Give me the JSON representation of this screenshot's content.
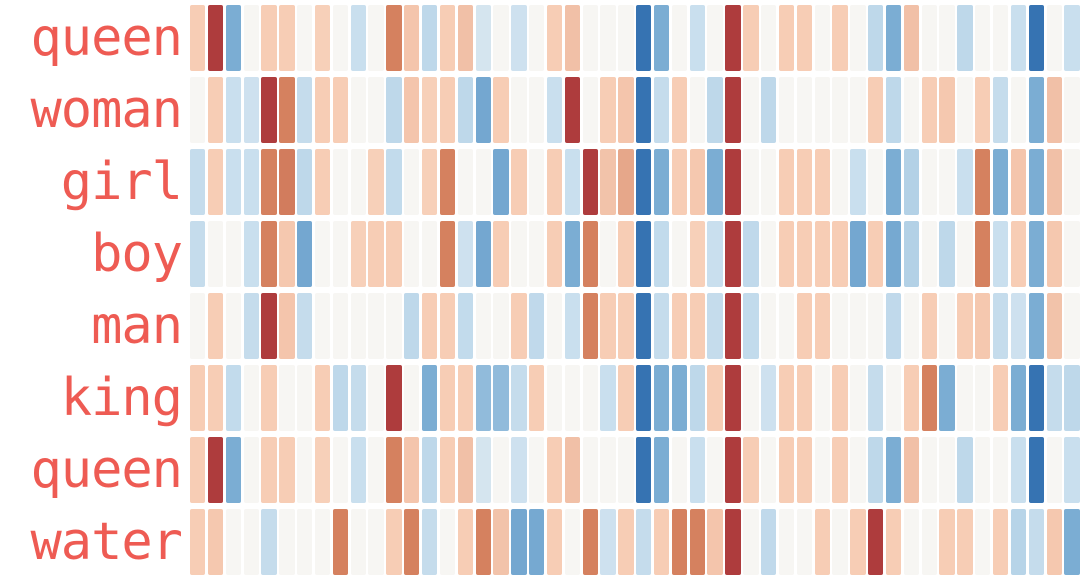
{
  "figure": {
    "background": "#ffffff",
    "label_color": "#ee5b53"
  },
  "chart_data": {
    "type": "heatmap",
    "title": "",
    "xlabel": "",
    "ylabel": "",
    "legend": "none",
    "grid": false,
    "rows": [
      "queen",
      "woman",
      "girl",
      "boy",
      "man",
      "king",
      "queen",
      "water"
    ],
    "columns": 50,
    "value_range": [
      -1,
      1
    ],
    "colormap": {
      "name": "red-white-blue-diverging",
      "stops": [
        [
          -0.85,
          "#3673b2"
        ],
        [
          -0.55,
          "#7badd3"
        ],
        [
          -0.2,
          "#c9dfee"
        ],
        [
          0.0,
          "#f7f6f3"
        ],
        [
          0.3,
          "#f7cdb5"
        ],
        [
          0.6,
          "#d5815f"
        ],
        [
          0.9,
          "#ae3c3d"
        ]
      ]
    },
    "values": [
      [
        0.3,
        0.9,
        -0.55,
        0,
        0.3,
        0.3,
        0,
        0.28,
        0,
        -0.2,
        0,
        0.6,
        0.33,
        -0.25,
        0.3,
        0.35,
        -0.15,
        0,
        -0.18,
        0,
        0.3,
        0.35,
        0,
        0,
        0,
        -0.85,
        -0.55,
        0,
        -0.2,
        0,
        0.9,
        0.3,
        0,
        0.3,
        0.3,
        0,
        0.3,
        0,
        -0.25,
        -0.55,
        0.35,
        0,
        0,
        -0.25,
        0,
        0,
        -0.2,
        -0.85,
        0,
        -0.2
      ],
      [
        0,
        0.3,
        -0.2,
        -0.18,
        0.9,
        0.6,
        -0.22,
        0.3,
        0.3,
        0,
        0,
        -0.25,
        0.33,
        0.28,
        0.3,
        -0.25,
        -0.58,
        0.3,
        0,
        0,
        -0.2,
        0.9,
        0,
        0.3,
        0.33,
        -0.85,
        -0.22,
        0.3,
        0,
        -0.25,
        0.9,
        0,
        -0.25,
        0,
        0,
        0,
        0,
        0,
        0.3,
        -0.25,
        0,
        0.3,
        0.32,
        0,
        0.3,
        -0.22,
        0,
        -0.55,
        0.35,
        0
      ],
      [
        -0.22,
        0.3,
        -0.2,
        -0.2,
        0.6,
        0.62,
        -0.25,
        0.3,
        0,
        0,
        0.28,
        -0.23,
        0,
        0.28,
        0.6,
        0,
        0,
        -0.58,
        0.3,
        0,
        0.3,
        -0.2,
        0.9,
        0.34,
        0.45,
        -0.85,
        -0.55,
        0.3,
        0.32,
        -0.55,
        0.9,
        0,
        0,
        0.3,
        0.3,
        0.3,
        0,
        -0.2,
        0,
        -0.55,
        -0.3,
        0,
        0,
        -0.2,
        0.6,
        -0.55,
        0.33,
        -0.55,
        0.35,
        0
      ],
      [
        -0.22,
        0,
        0,
        -0.2,
        0.6,
        0.32,
        -0.58,
        0,
        0,
        0.28,
        0.3,
        0.3,
        0,
        0,
        0.6,
        -0.18,
        -0.58,
        0.3,
        0,
        0,
        0.3,
        -0.55,
        0.6,
        0,
        0.3,
        -0.85,
        -0.23,
        0,
        0.28,
        -0.2,
        0.9,
        -0.24,
        0,
        0.3,
        0.3,
        0.3,
        0.3,
        -0.58,
        0.3,
        -0.57,
        -0.3,
        0,
        -0.25,
        0,
        0.6,
        -0.2,
        0.3,
        -0.55,
        0.32,
        0
      ],
      [
        0,
        0.3,
        0,
        -0.22,
        0.9,
        0.33,
        -0.22,
        0,
        0,
        0,
        0,
        0,
        -0.25,
        0.3,
        0.3,
        -0.23,
        0,
        0,
        0.3,
        -0.24,
        0,
        -0.2,
        0.6,
        0.3,
        0.3,
        -0.85,
        -0.22,
        0.3,
        0.3,
        -0.22,
        0.9,
        -0.23,
        0,
        0,
        0.3,
        0.3,
        0,
        0,
        0,
        -0.24,
        0,
        0.3,
        0,
        0.3,
        0.32,
        -0.22,
        -0.18,
        -0.55,
        0.34,
        0
      ],
      [
        0.3,
        0.3,
        -0.23,
        0,
        0.3,
        0,
        0,
        0.3,
        -0.25,
        -0.22,
        0,
        0.9,
        0,
        -0.55,
        0.3,
        0.3,
        -0.45,
        -0.45,
        -0.22,
        0.3,
        0,
        0,
        0,
        -0.2,
        0.3,
        -0.85,
        -0.55,
        -0.55,
        -0.25,
        0.3,
        0.9,
        0,
        -0.18,
        0.3,
        0.3,
        0,
        0.3,
        0,
        -0.22,
        0,
        0.3,
        0.6,
        -0.55,
        0,
        0,
        0.3,
        -0.55,
        -0.85,
        -0.22,
        -0.25
      ],
      [
        0.3,
        0.9,
        -0.55,
        0,
        0.3,
        0.3,
        0,
        0.28,
        0,
        -0.2,
        0,
        0.6,
        0.33,
        -0.25,
        0.3,
        0.35,
        -0.15,
        0,
        -0.18,
        0,
        0.3,
        0.35,
        0,
        0,
        0,
        -0.85,
        -0.55,
        0,
        -0.2,
        0,
        0.9,
        0.3,
        0,
        0.3,
        0.3,
        0,
        0.3,
        0,
        -0.25,
        -0.55,
        0.35,
        0,
        0,
        -0.25,
        0,
        0,
        -0.2,
        -0.85,
        0,
        -0.2
      ],
      [
        0.3,
        0.32,
        0,
        0,
        -0.22,
        0,
        0,
        0,
        0.6,
        0,
        0,
        0.3,
        0.6,
        -0.22,
        0,
        0.3,
        0.6,
        0.34,
        -0.58,
        -0.57,
        0.3,
        0,
        0.6,
        -0.18,
        0.3,
        -0.22,
        0.3,
        0.6,
        0.6,
        0.33,
        0.9,
        0,
        -0.24,
        0,
        0,
        0.3,
        0,
        0.3,
        0.9,
        0.3,
        0,
        0,
        0.3,
        0.3,
        0,
        0.3,
        -0.28,
        -0.22,
        0.32,
        -0.55
      ]
    ]
  }
}
